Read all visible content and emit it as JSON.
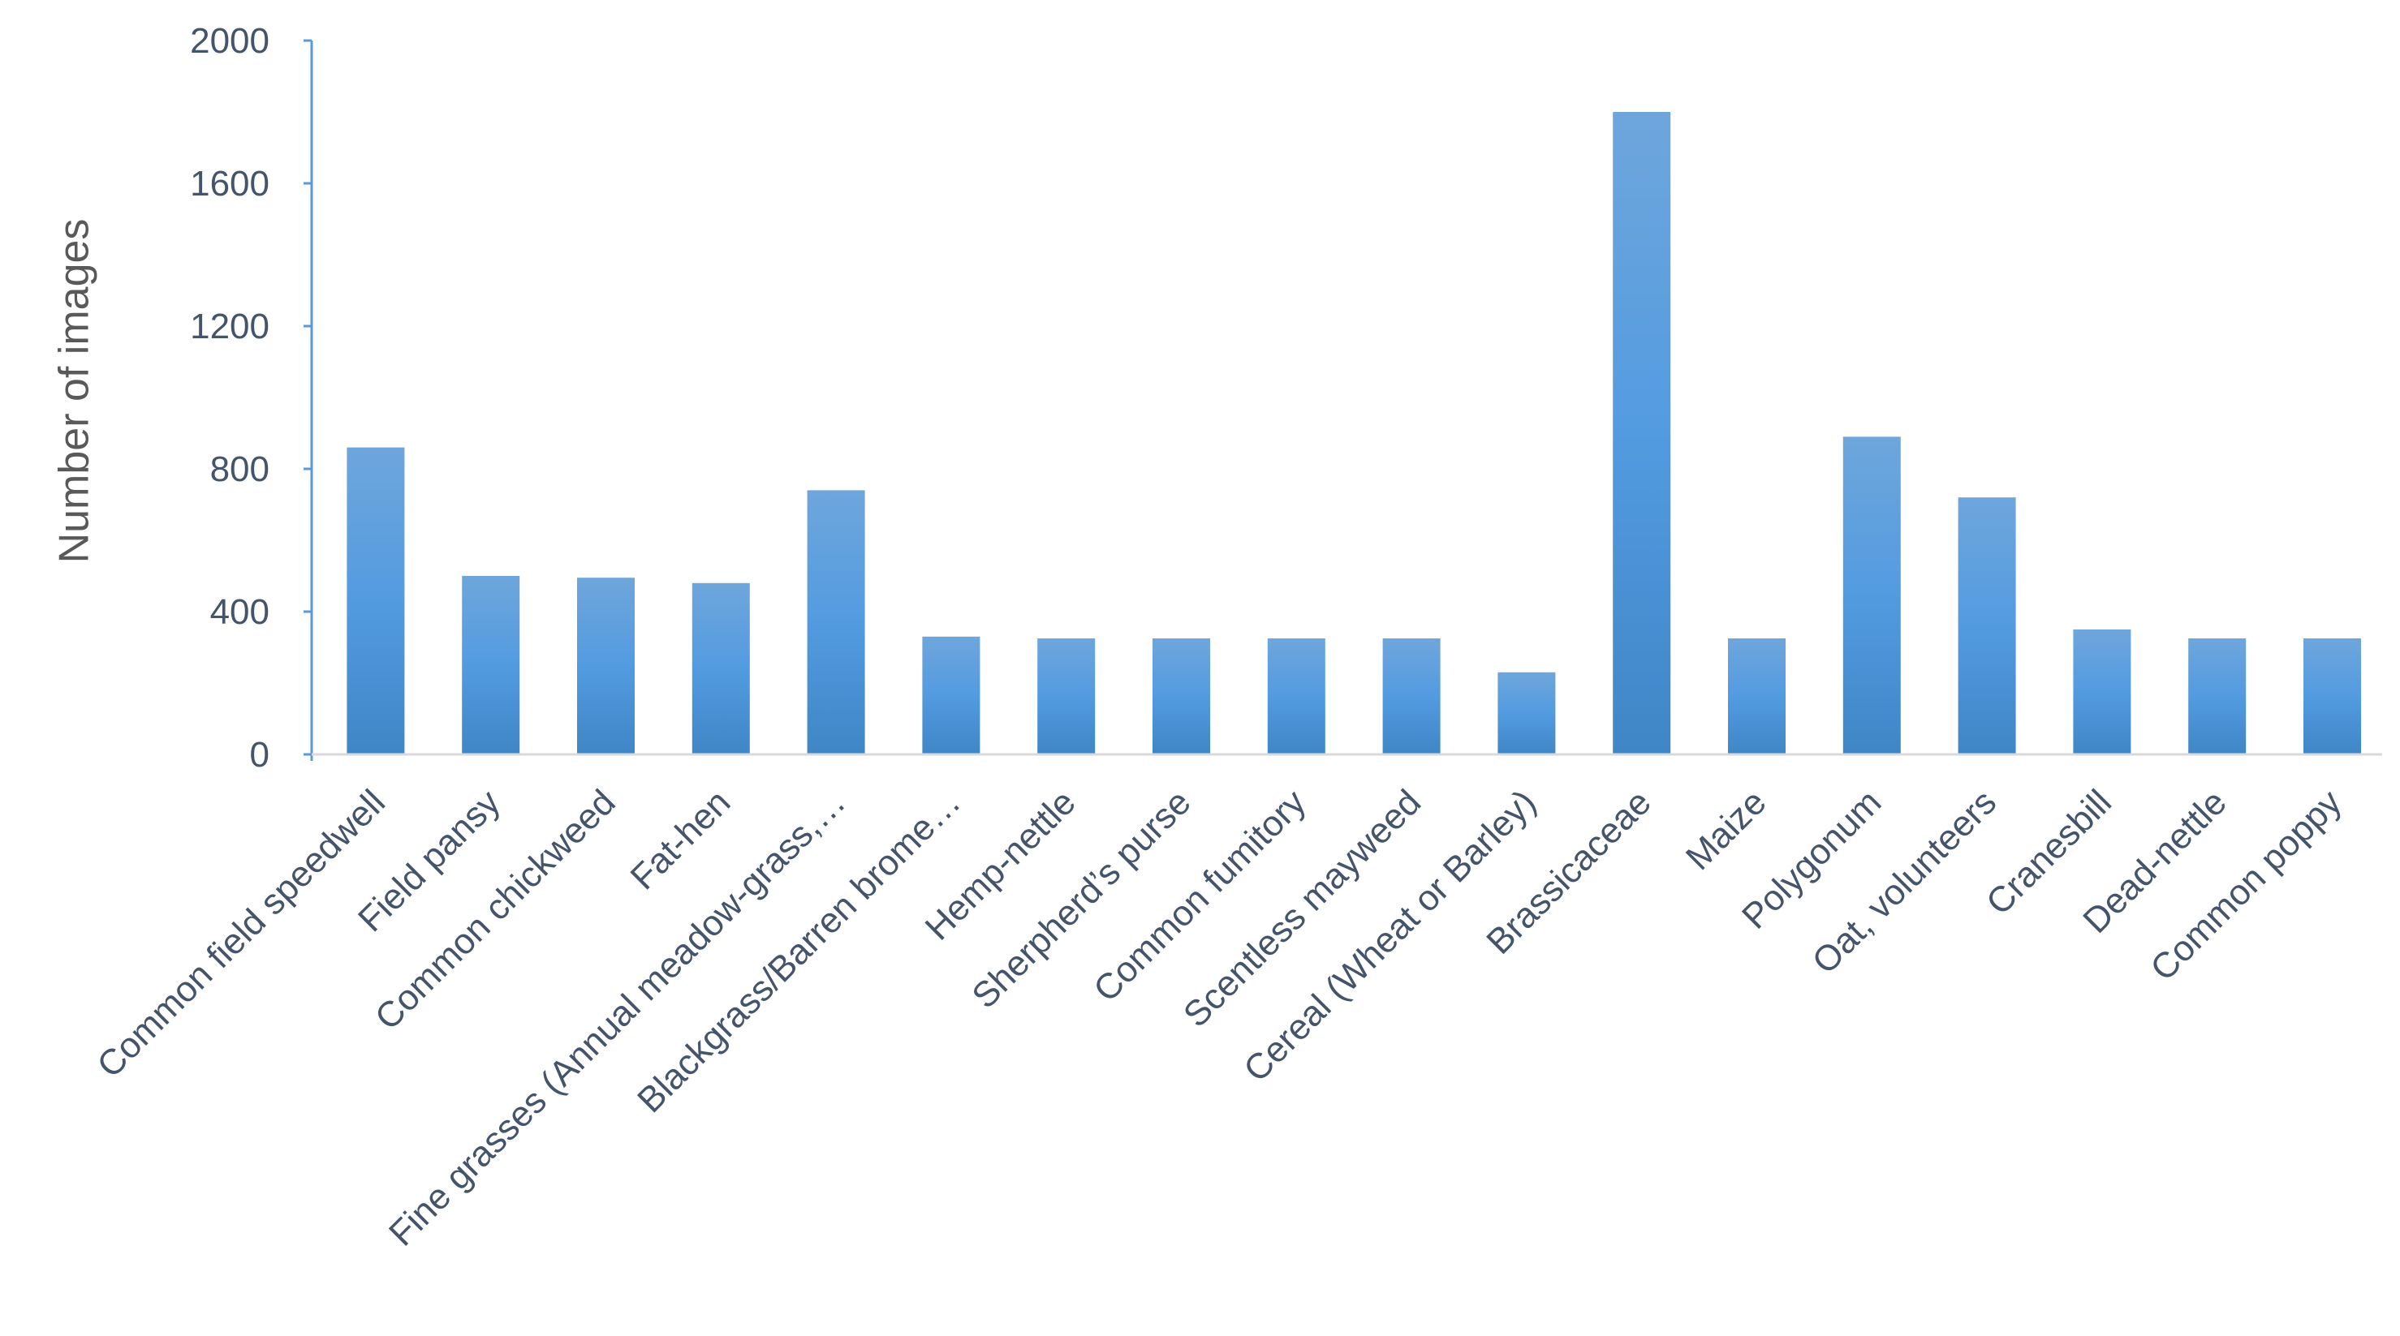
{
  "chart_data": {
    "type": "bar",
    "title": "",
    "xlabel": "",
    "ylabel": "Number of images",
    "ylim": [
      0,
      2000
    ],
    "yticks": [
      0,
      400,
      800,
      1200,
      1600,
      2000
    ],
    "grid": false,
    "legend": "none",
    "bar_color": "#5B9BD5",
    "categories": [
      "Common field speedwell",
      "Field pansy",
      "Common chickweed",
      "Fat-hen",
      "Fine grasses (Annual meadow-grass,…",
      "Blackgrass/Barren brome…",
      "Hemp-nettle",
      "Sherpherd’s purse",
      "Common fumitory",
      "Scentless mayweed",
      "Cereal (Wheat or Barley)",
      "Brassicaceae",
      "Maize",
      "Polygonum",
      "Oat, volunteers",
      "Cranesbill",
      "Dead-nettle",
      "Common poppy"
    ],
    "values": [
      860,
      500,
      495,
      480,
      740,
      330,
      325,
      325,
      325,
      325,
      230,
      1800,
      325,
      890,
      720,
      350,
      325,
      325
    ]
  }
}
